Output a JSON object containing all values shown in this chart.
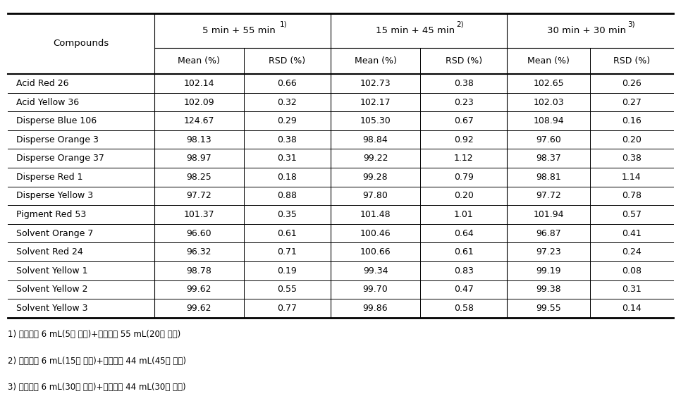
{
  "compounds": [
    "Acid Red 26",
    "Acid Yellow 36",
    "Disperse Blue 106",
    "Disperse Orange 3",
    "Disperse Orange 37",
    "Disperse Red 1",
    "Disperse Yellow 3",
    "Pigment Red 53",
    "Solvent Orange 7",
    "Solvent Red 24",
    "Solvent Yellow 1",
    "Solvent Yellow 2",
    "Solvent Yellow 3"
  ],
  "col_headers_top": [
    "5 min + 55 min¹⁾",
    "15 min + 45 min²⁾",
    "30 min + 30 min³⁾"
  ],
  "col_headers_top_raw": [
    "5 min + 55 min",
    "15 min + 45 min",
    "30 min + 30 min"
  ],
  "col_headers_top_sup": [
    "1)",
    "2)",
    "3)"
  ],
  "col_headers_sub": [
    "Mean (%)",
    "RSD (%)"
  ],
  "data": [
    [
      102.14,
      0.66,
      102.73,
      0.38,
      102.65,
      0.26
    ],
    [
      102.09,
      0.32,
      102.17,
      0.23,
      102.03,
      0.27
    ],
    [
      124.67,
      0.29,
      105.3,
      0.67,
      108.94,
      0.16
    ],
    [
      98.13,
      0.38,
      98.84,
      0.92,
      97.6,
      0.2
    ],
    [
      98.97,
      0.31,
      99.22,
      1.12,
      98.37,
      0.38
    ],
    [
      98.25,
      0.18,
      99.28,
      0.79,
      98.81,
      1.14
    ],
    [
      97.72,
      0.88,
      97.8,
      0.2,
      97.72,
      0.78
    ],
    [
      101.37,
      0.35,
      101.48,
      1.01,
      101.94,
      0.57
    ],
    [
      96.6,
      0.61,
      100.46,
      0.64,
      96.87,
      0.41
    ],
    [
      96.32,
      0.71,
      100.66,
      0.61,
      97.23,
      0.24
    ],
    [
      98.78,
      0.19,
      99.34,
      0.83,
      99.19,
      0.08
    ],
    [
      99.62,
      0.55,
      99.7,
      0.47,
      99.38,
      0.31
    ],
    [
      99.62,
      0.77,
      99.86,
      0.58,
      99.55,
      0.14
    ]
  ],
  "footnotes": [
    "1) 추출용매 6 mL(5분 추출)+추출용매 55 mL(20분 추출)",
    "2) 추출용매 6 mL(15분 추출)+추출용매 44 mL(45분 추출)",
    "3) 추출용매 6 mL(30분 추출)+추출용매 44 mL(30분 추출)"
  ],
  "background_color": "#ffffff",
  "text_color": "#000000",
  "font_size_header": 9.5,
  "font_size_data": 9.0,
  "font_size_footnote": 8.5
}
